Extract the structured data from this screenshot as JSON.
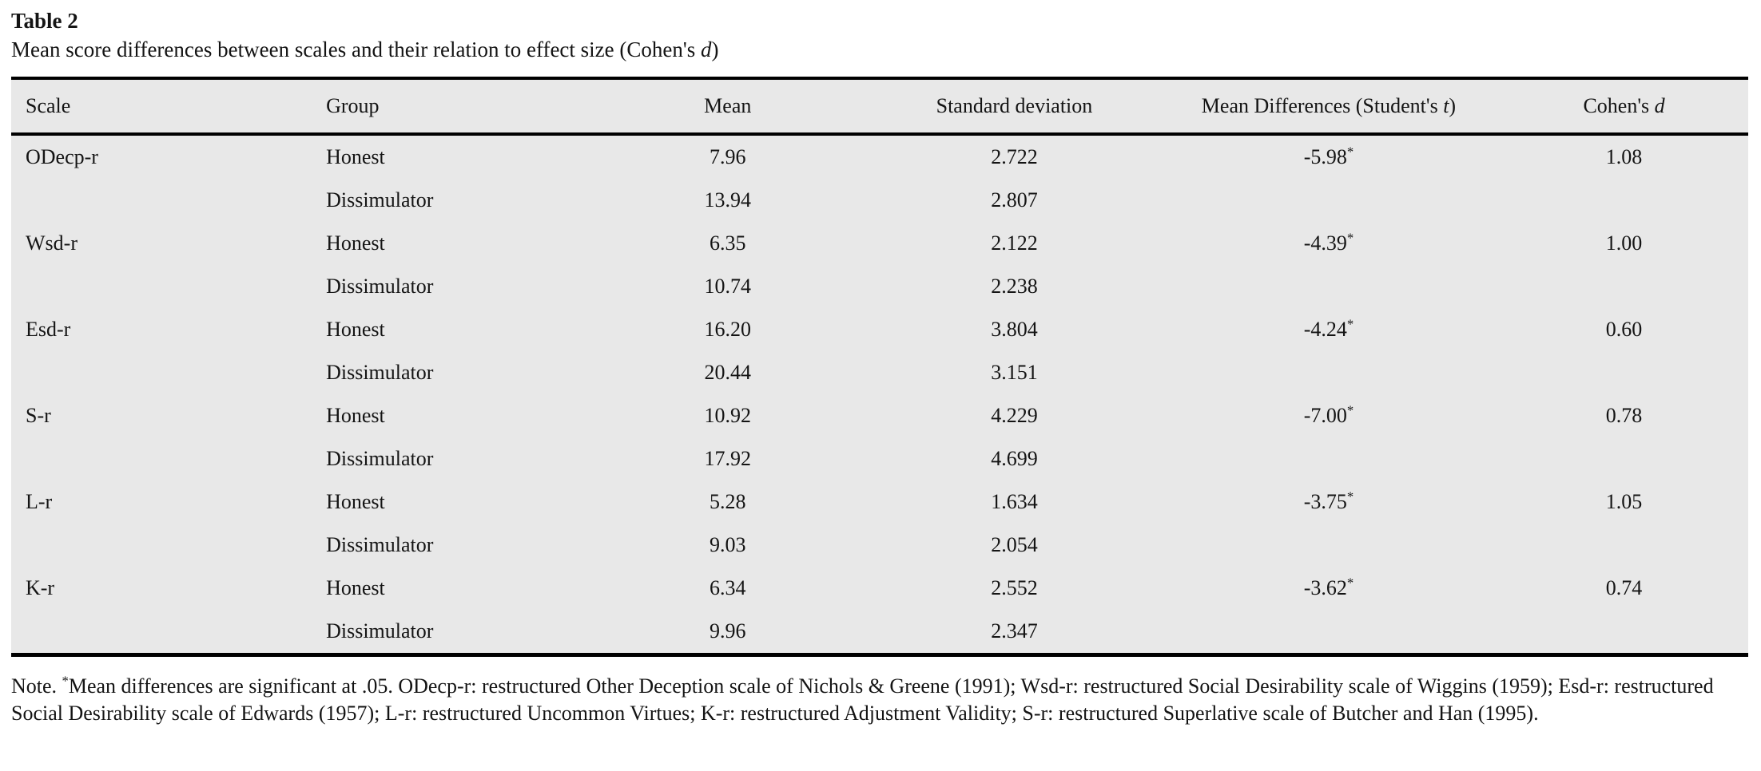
{
  "colors": {
    "table_background": "#e8e8e8",
    "rule": "#000000",
    "text": "#141414",
    "page_background": "#ffffff"
  },
  "caption": {
    "label": "Table 2",
    "text": "Mean score differences between scales and their relation to effect size (Cohen's ",
    "italic_term": "d",
    "closing": ")"
  },
  "table": {
    "headers": {
      "scale": "Scale",
      "group": "Group",
      "mean": "Mean",
      "sd": "Standard deviation",
      "mean_diff_prefix": "Mean Differences (Student's ",
      "mean_diff_italic": "t",
      "mean_diff_suffix": ")",
      "cohens_prefix": "Cohen's ",
      "cohens_italic": "d"
    },
    "rows": [
      {
        "scale": "ODecp-r",
        "group": "Honest",
        "mean": "7.96",
        "sd": "2.722",
        "mean_diff": "-5.98",
        "sig": "*",
        "cohens_d": "1.08"
      },
      {
        "scale": "",
        "group": "Dissimulator",
        "mean": "13.94",
        "sd": "2.807",
        "mean_diff": "",
        "sig": "",
        "cohens_d": ""
      },
      {
        "scale": "Wsd-r",
        "group": "Honest",
        "mean": "6.35",
        "sd": "2.122",
        "mean_diff": "-4.39",
        "sig": "*",
        "cohens_d": "1.00"
      },
      {
        "scale": "",
        "group": "Dissimulator",
        "mean": "10.74",
        "sd": "2.238",
        "mean_diff": "",
        "sig": "",
        "cohens_d": ""
      },
      {
        "scale": "Esd-r",
        "group": "Honest",
        "mean": "16.20",
        "sd": "3.804",
        "mean_diff": "-4.24",
        "sig": "*",
        "cohens_d": "0.60"
      },
      {
        "scale": "",
        "group": "Dissimulator",
        "mean": "20.44",
        "sd": "3.151",
        "mean_diff": "",
        "sig": "",
        "cohens_d": ""
      },
      {
        "scale": "S-r",
        "group": "Honest",
        "mean": "10.92",
        "sd": "4.229",
        "mean_diff": "-7.00",
        "sig": "*",
        "cohens_d": "0.78"
      },
      {
        "scale": "",
        "group": "Dissimulator",
        "mean": "17.92",
        "sd": "4.699",
        "mean_diff": "",
        "sig": "",
        "cohens_d": ""
      },
      {
        "scale": "L-r",
        "group": "Honest",
        "mean": "5.28",
        "sd": "1.634",
        "mean_diff": "-3.75",
        "sig": "*",
        "cohens_d": "1.05"
      },
      {
        "scale": "",
        "group": "Dissimulator",
        "mean": "9.03",
        "sd": "2.054",
        "mean_diff": "",
        "sig": "",
        "cohens_d": ""
      },
      {
        "scale": "K-r",
        "group": "Honest",
        "mean": "6.34",
        "sd": "2.552",
        "mean_diff": "-3.62",
        "sig": "*",
        "cohens_d": "0.74"
      },
      {
        "scale": "",
        "group": "Dissimulator",
        "mean": "9.96",
        "sd": "2.347",
        "mean_diff": "",
        "sig": "",
        "cohens_d": ""
      }
    ]
  },
  "note": {
    "label": "Note. ",
    "sig_marker": "*",
    "text": "Mean differences are significant at .05. ODecp-r: restructured Other Deception scale of Nichols & Greene (1991); Wsd-r: restructured Social Desirability scale of Wiggins (1959); Esd-r: restructured Social Desirability scale of Edwards (1957); L-r: restructured Uncommon Virtues; K-r: restructured Adjustment Validity; S-r: restructured Superlative scale of Butcher and Han (1995)."
  }
}
